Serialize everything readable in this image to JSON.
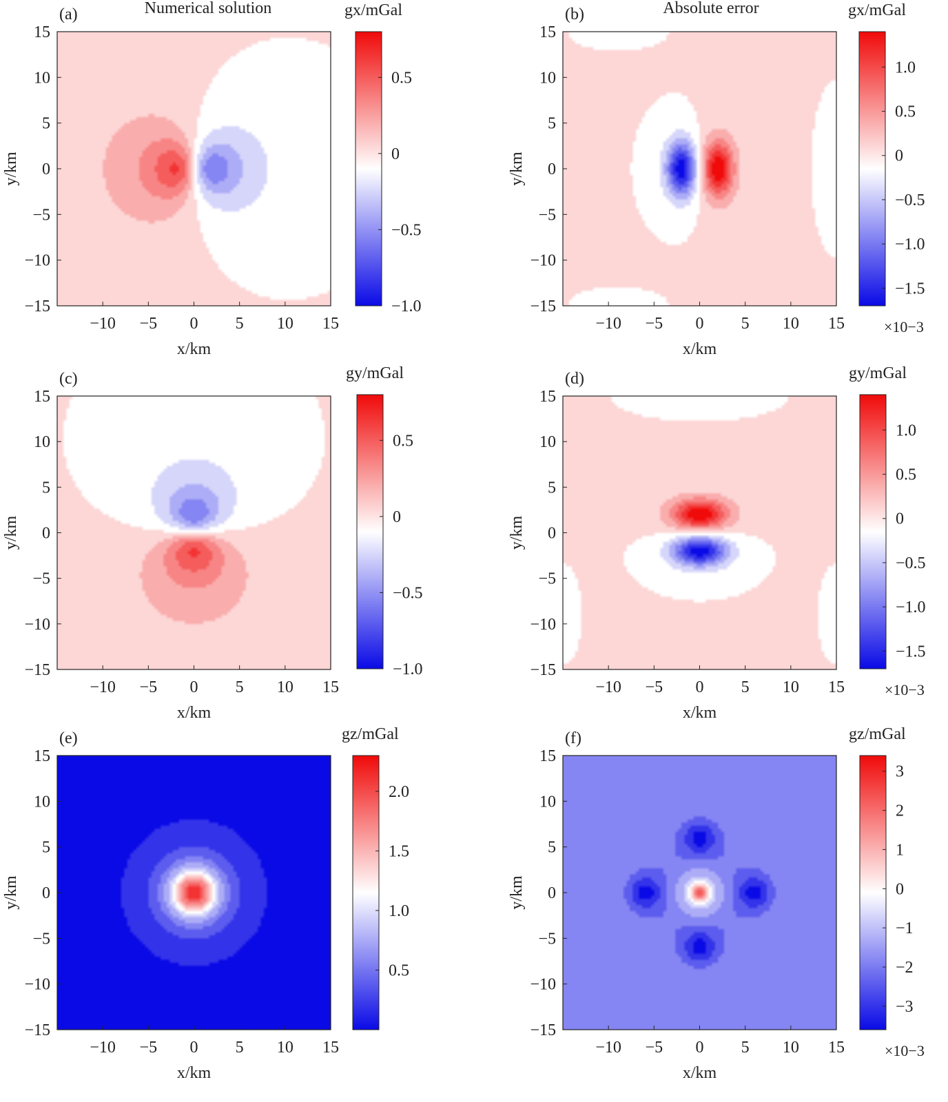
{
  "figure": {
    "column_titles": [
      "Numerical solution",
      "Absolute error"
    ]
  },
  "chart_data": [
    {
      "type": "heatmap",
      "panel_label": "(a)",
      "xlabel": "x/km",
      "ylabel": "y/km",
      "xlim": [
        -15,
        15
      ],
      "ylim": [
        -15,
        15
      ],
      "xticks": [
        "−10",
        "−5",
        "0",
        "5",
        "10",
        "15"
      ],
      "yticks": [
        "15",
        "10",
        "5",
        "0",
        "−5",
        "−10",
        "−15"
      ],
      "colorbar": {
        "label": "gx/mGal",
        "range": [
          -1.0,
          0.8
        ],
        "ticks": [
          "0.5",
          "0",
          "−0.5",
          "−1.0"
        ],
        "multiplier": ""
      },
      "field": "gx",
      "source_center": [
        0,
        0
      ],
      "extremes": {
        "max": 0.8,
        "min": -1.0
      }
    },
    {
      "type": "heatmap",
      "panel_label": "(b)",
      "xlabel": "x/km",
      "ylabel": "y/km",
      "xlim": [
        -15,
        15
      ],
      "ylim": [
        -15,
        15
      ],
      "xticks": [
        "−10",
        "−5",
        "0",
        "5",
        "10",
        "15"
      ],
      "yticks": [
        "15",
        "10",
        "5",
        "0",
        "−5",
        "−10",
        "−15"
      ],
      "colorbar": {
        "label": "gx/mGal",
        "range": [
          -1.7,
          1.4
        ],
        "ticks": [
          "1.0",
          "0.5",
          "0",
          "−0.5",
          "−1.0",
          "−1.5"
        ],
        "multiplier": "×10−3"
      },
      "field": "gx_error",
      "extremes": {
        "max": 1.4,
        "min": -1.7
      }
    },
    {
      "type": "heatmap",
      "panel_label": "(c)",
      "xlabel": "x/km",
      "ylabel": "y/km",
      "xlim": [
        -15,
        15
      ],
      "ylim": [
        -15,
        15
      ],
      "xticks": [
        "−10",
        "−5",
        "0",
        "5",
        "10",
        "15"
      ],
      "yticks": [
        "15",
        "10",
        "5",
        "0",
        "−5",
        "−10",
        "−15"
      ],
      "colorbar": {
        "label": "gy/mGal",
        "range": [
          -1.0,
          0.8
        ],
        "ticks": [
          "0.5",
          "0",
          "−0.5",
          "−1.0"
        ],
        "multiplier": ""
      },
      "field": "gy",
      "extremes": {
        "max": 0.8,
        "min": -1.0
      }
    },
    {
      "type": "heatmap",
      "panel_label": "(d)",
      "xlabel": "x/km",
      "ylabel": "y/km",
      "xlim": [
        -15,
        15
      ],
      "ylim": [
        -15,
        15
      ],
      "xticks": [
        "−10",
        "−5",
        "0",
        "5",
        "10",
        "15"
      ],
      "yticks": [
        "15",
        "10",
        "5",
        "0",
        "−5",
        "−10",
        "−15"
      ],
      "colorbar": {
        "label": "gy/mGal",
        "range": [
          -1.7,
          1.4
        ],
        "ticks": [
          "1.0",
          "0.5",
          "0",
          "−0.5",
          "−1.0",
          "−1.5"
        ],
        "multiplier": "×10−3"
      },
      "field": "gy_error",
      "extremes": {
        "max": 1.4,
        "min": -1.7
      }
    },
    {
      "type": "heatmap",
      "panel_label": "(e)",
      "xlabel": "x/km",
      "ylabel": "y/km",
      "xlim": [
        -15,
        15
      ],
      "ylim": [
        -15,
        15
      ],
      "xticks": [
        "−10",
        "−5",
        "0",
        "5",
        "10",
        "15"
      ],
      "yticks": [
        "15",
        "10",
        "5",
        "0",
        "−5",
        "−10",
        "−15"
      ],
      "colorbar": {
        "label": "gz/mGal",
        "range": [
          0.0,
          2.3
        ],
        "ticks": [
          "2.0",
          "1.5",
          "1.0",
          "0.5"
        ],
        "multiplier": ""
      },
      "field": "gz",
      "extremes": {
        "max": 2.3,
        "min": 0.0
      }
    },
    {
      "type": "heatmap",
      "panel_label": "(f)",
      "xlabel": "x/km",
      "ylabel": "y/km",
      "xlim": [
        -15,
        15
      ],
      "ylim": [
        -15,
        15
      ],
      "xticks": [
        "−10",
        "−5",
        "0",
        "5",
        "10",
        "15"
      ],
      "yticks": [
        "15",
        "10",
        "5",
        "0",
        "−5",
        "−10",
        "−15"
      ],
      "colorbar": {
        "label": "gz/mGal",
        "range": [
          -3.6,
          3.4
        ],
        "ticks": [
          "3",
          "2",
          "1",
          "0",
          "−1",
          "−2",
          "−3"
        ],
        "multiplier": "×10−3"
      },
      "field": "gz_error",
      "extremes": {
        "max": 3.4,
        "min": -3.6
      }
    }
  ]
}
